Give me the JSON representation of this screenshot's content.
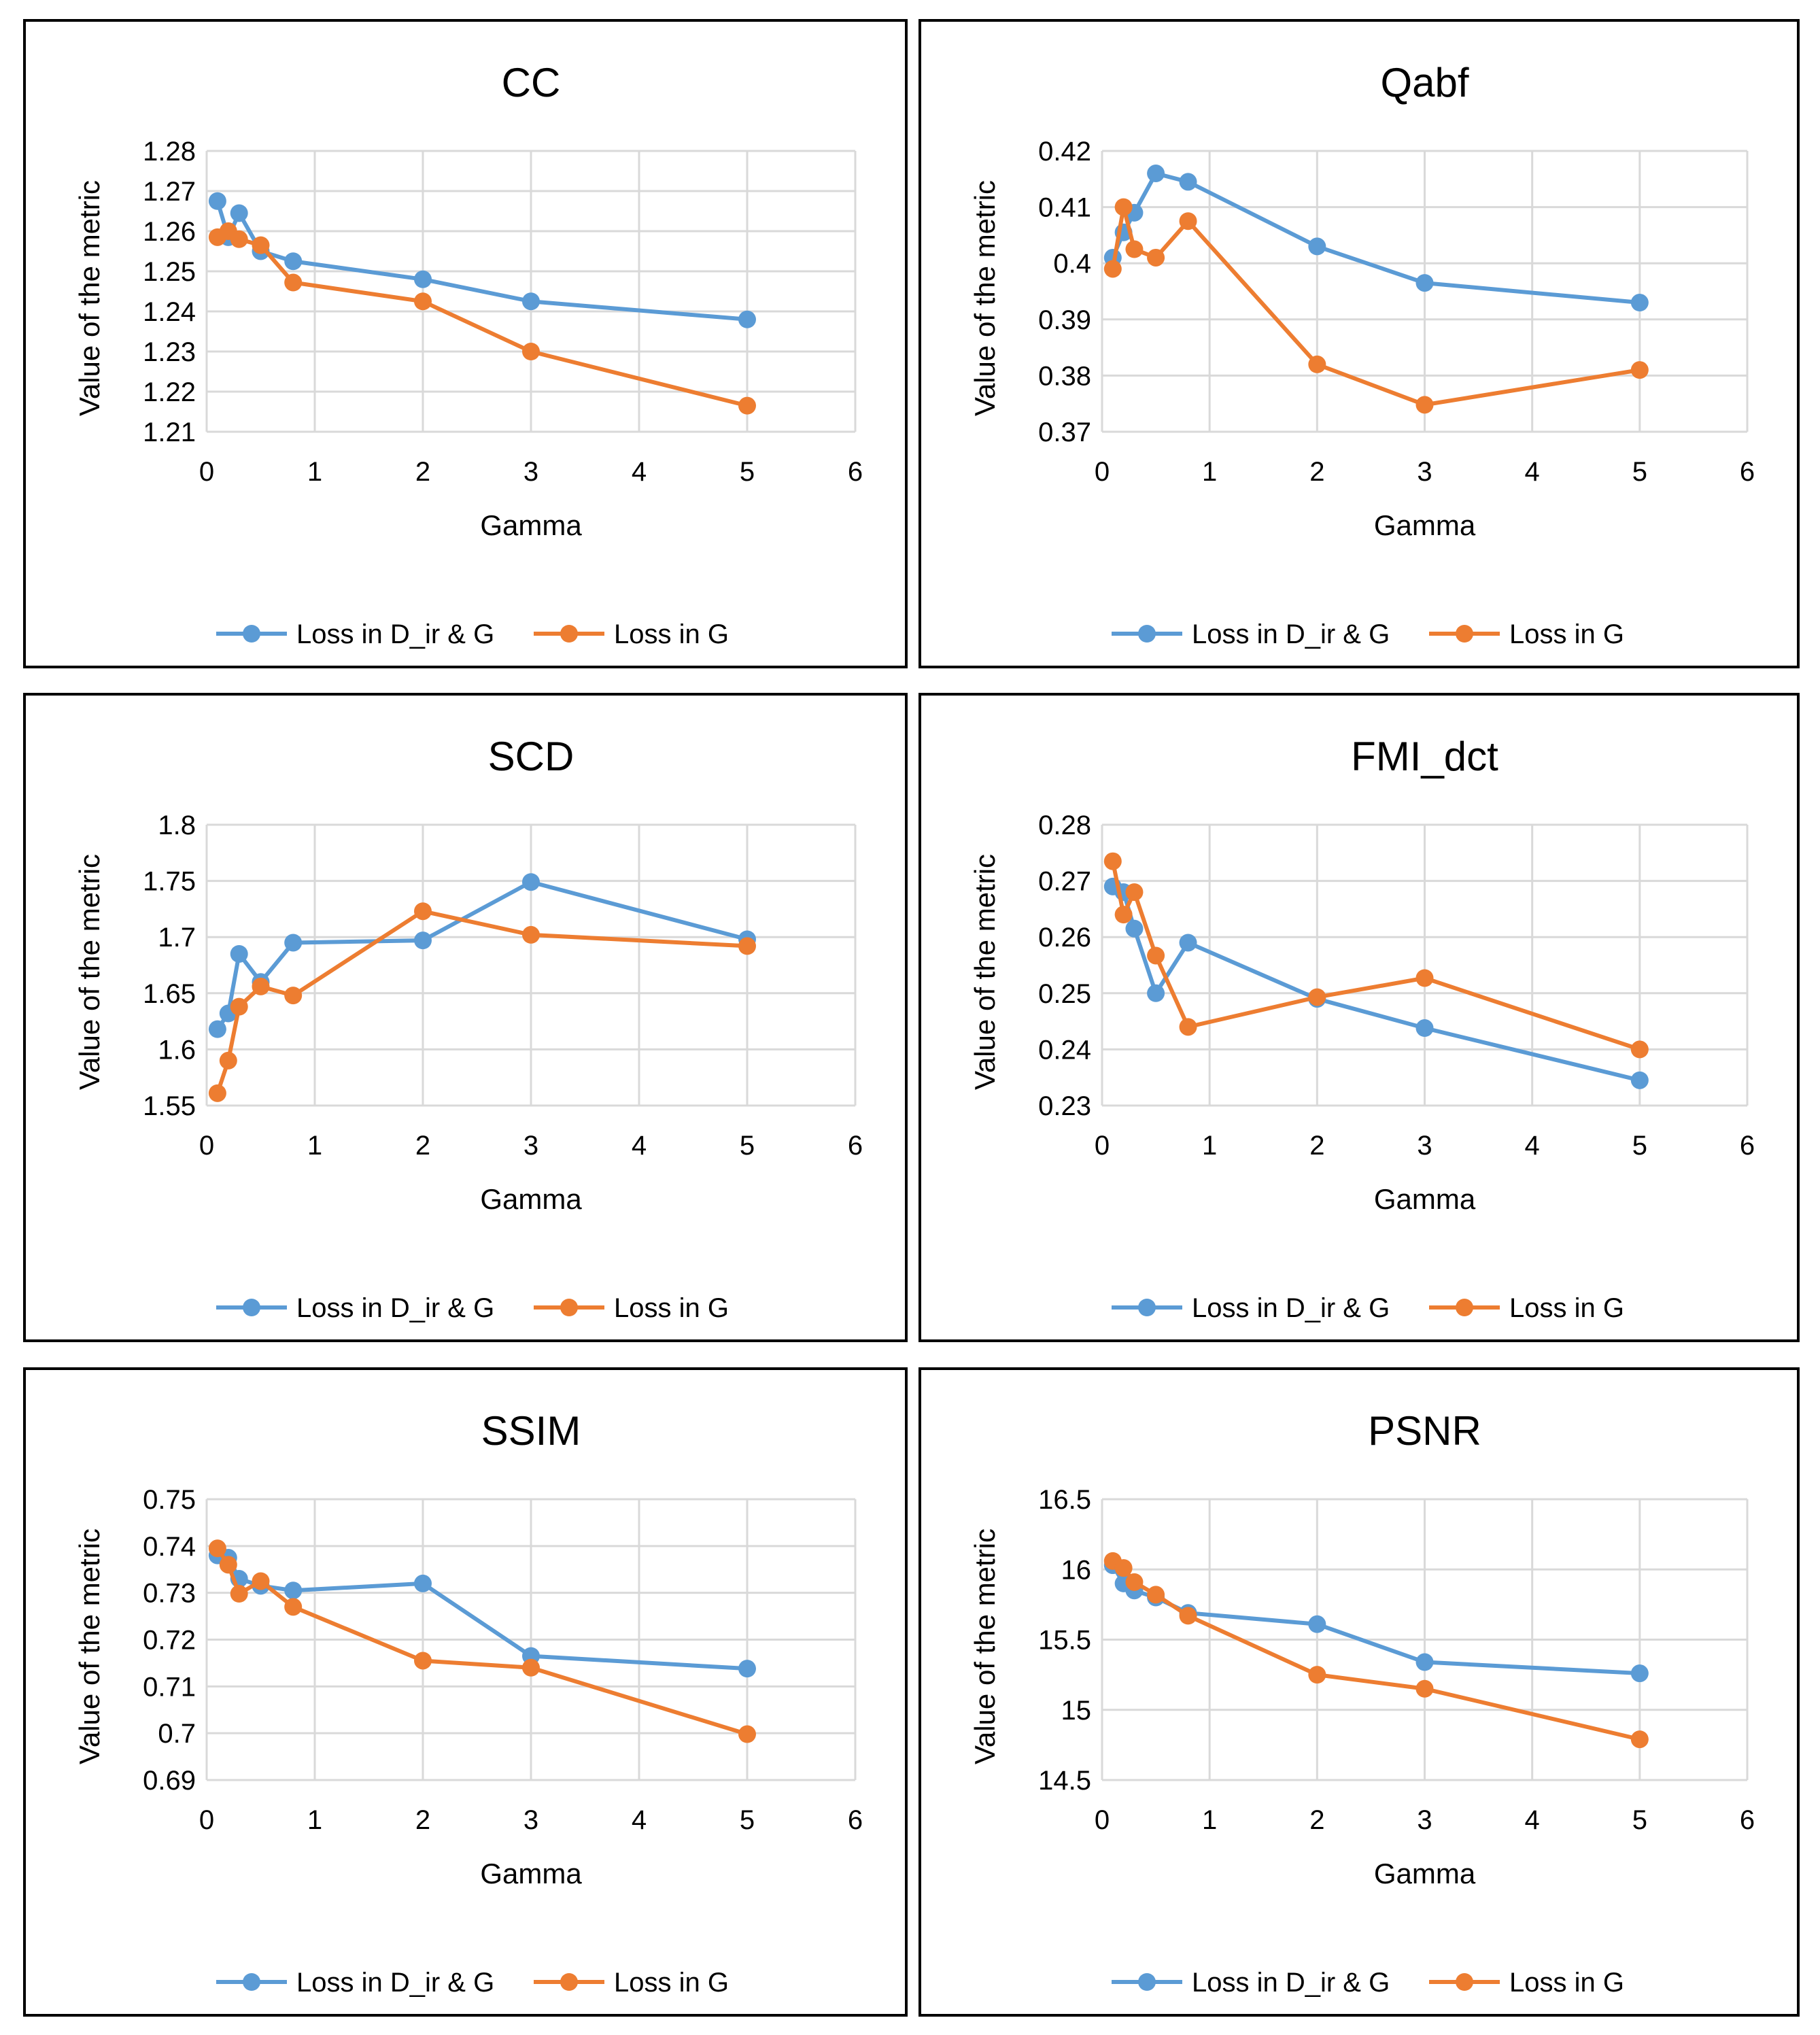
{
  "colors": {
    "series_1": "#5b9bd5",
    "series_2": "#ed7d31",
    "grid": "#d9d9d9",
    "border": "#000000"
  },
  "chart_data": [
    {
      "type": "line",
      "title": "CC",
      "xlabel": "Gamma",
      "ylabel": "Value of the metric",
      "xlim": [
        0,
        6
      ],
      "ylim": [
        1.21,
        1.28
      ],
      "xticks": [
        "0",
        "1",
        "2",
        "3",
        "4",
        "5",
        "6"
      ],
      "yticks": [
        "1.21",
        "1.22",
        "1.23",
        "1.24",
        "1.25",
        "1.26",
        "1.27",
        "1.28"
      ],
      "legend": "bottom",
      "x": [
        0.1,
        0.2,
        0.3,
        0.5,
        0.8,
        2,
        3,
        5
      ],
      "series": [
        {
          "name": "Loss in D_ir & G",
          "values": [
            1.2675,
            1.2585,
            1.2645,
            1.255,
            1.2525,
            1.248,
            1.2425,
            1.238
          ]
        },
        {
          "name": "Loss in G",
          "values": [
            1.2585,
            1.26,
            1.258,
            1.2565,
            1.2472,
            1.2425,
            1.23,
            1.2165
          ]
        }
      ]
    },
    {
      "type": "line",
      "title": "Qabf",
      "xlabel": "Gamma",
      "ylabel": "Value of the metric",
      "xlim": [
        0,
        6
      ],
      "ylim": [
        0.37,
        0.42
      ],
      "xticks": [
        "0",
        "1",
        "2",
        "3",
        "4",
        "5",
        "6"
      ],
      "yticks": [
        "0.37",
        "0.38",
        "0.39",
        "0.4",
        "0.41",
        "0.42"
      ],
      "legend": "bottom",
      "x": [
        0.1,
        0.2,
        0.3,
        0.5,
        0.8,
        2,
        3,
        5
      ],
      "series": [
        {
          "name": "Loss in D_ir & G",
          "values": [
            0.401,
            0.4055,
            0.409,
            0.416,
            0.4145,
            0.403,
            0.3965,
            0.393
          ]
        },
        {
          "name": "Loss in G",
          "values": [
            0.399,
            0.41,
            0.4025,
            0.401,
            0.4075,
            0.382,
            0.3748,
            0.381
          ]
        }
      ]
    },
    {
      "type": "line",
      "title": "SCD",
      "xlabel": "Gamma",
      "ylabel": "Value of the metric",
      "xlim": [
        0,
        6
      ],
      "ylim": [
        1.55,
        1.8
      ],
      "xticks": [
        "0",
        "1",
        "2",
        "3",
        "4",
        "5",
        "6"
      ],
      "yticks": [
        "1.55",
        "1.6",
        "1.65",
        "1.7",
        "1.75",
        "1.8"
      ],
      "legend": "bottom",
      "x": [
        0.1,
        0.2,
        0.3,
        0.5,
        0.8,
        2,
        3,
        5
      ],
      "series": [
        {
          "name": "Loss in D_ir & G",
          "values": [
            1.618,
            1.632,
            1.685,
            1.66,
            1.695,
            1.697,
            1.749,
            1.698
          ]
        },
        {
          "name": "Loss in G",
          "values": [
            1.561,
            1.59,
            1.638,
            1.656,
            1.648,
            1.723,
            1.702,
            1.692
          ]
        }
      ]
    },
    {
      "type": "line",
      "title": "FMI_dct",
      "xlabel": "Gamma",
      "ylabel": "Value of the metric",
      "xlim": [
        0,
        6
      ],
      "ylim": [
        0.23,
        0.28
      ],
      "xticks": [
        "0",
        "1",
        "2",
        "3",
        "4",
        "5",
        "6"
      ],
      "yticks": [
        "0.23",
        "0.24",
        "0.25",
        "0.26",
        "0.27",
        "0.28"
      ],
      "legend": "bottom",
      "x": [
        0.1,
        0.2,
        0.3,
        0.5,
        0.8,
        2,
        3,
        5
      ],
      "series": [
        {
          "name": "Loss in D_ir & G",
          "values": [
            0.269,
            0.268,
            0.2615,
            0.25,
            0.259,
            0.249,
            0.2438,
            0.2345
          ]
        },
        {
          "name": "Loss in G",
          "values": [
            0.2735,
            0.264,
            0.268,
            0.2567,
            0.244,
            0.2493,
            0.2527,
            0.24
          ]
        }
      ]
    },
    {
      "type": "line",
      "title": "SSIM",
      "xlabel": "Gamma",
      "ylabel": "Value of the metric",
      "xlim": [
        0,
        6
      ],
      "ylim": [
        0.69,
        0.75
      ],
      "xticks": [
        "0",
        "1",
        "2",
        "3",
        "4",
        "5",
        "6"
      ],
      "yticks": [
        "0.69",
        "0.7",
        "0.71",
        "0.72",
        "0.73",
        "0.74",
        "0.75"
      ],
      "legend": "bottom",
      "x": [
        0.1,
        0.2,
        0.3,
        0.5,
        0.8,
        2,
        3,
        5
      ],
      "series": [
        {
          "name": "Loss in D_ir & G",
          "values": [
            0.738,
            0.7375,
            0.733,
            0.7315,
            0.7305,
            0.732,
            0.7165,
            0.7138
          ]
        },
        {
          "name": "Loss in G",
          "values": [
            0.7395,
            0.736,
            0.7298,
            0.7325,
            0.727,
            0.7155,
            0.714,
            0.6998
          ]
        }
      ]
    },
    {
      "type": "line",
      "title": "PSNR",
      "xlabel": "Gamma",
      "ylabel": "Value of the metric",
      "xlim": [
        0,
        6
      ],
      "ylim": [
        14.5,
        16.5
      ],
      "xticks": [
        "0",
        "1",
        "2",
        "3",
        "4",
        "5",
        "6"
      ],
      "yticks": [
        "14.5",
        "15",
        "15.5",
        "16",
        "16.5"
      ],
      "legend": "bottom",
      "x": [
        0.1,
        0.2,
        0.3,
        0.5,
        0.8,
        2,
        3,
        5
      ],
      "series": [
        {
          "name": "Loss in D_ir & G",
          "values": [
            16.03,
            15.9,
            15.85,
            15.8,
            15.69,
            15.61,
            15.34,
            15.26
          ]
        },
        {
          "name": "Loss in G",
          "values": [
            16.06,
            16.01,
            15.91,
            15.82,
            15.67,
            15.25,
            15.15,
            14.79
          ]
        }
      ]
    }
  ]
}
